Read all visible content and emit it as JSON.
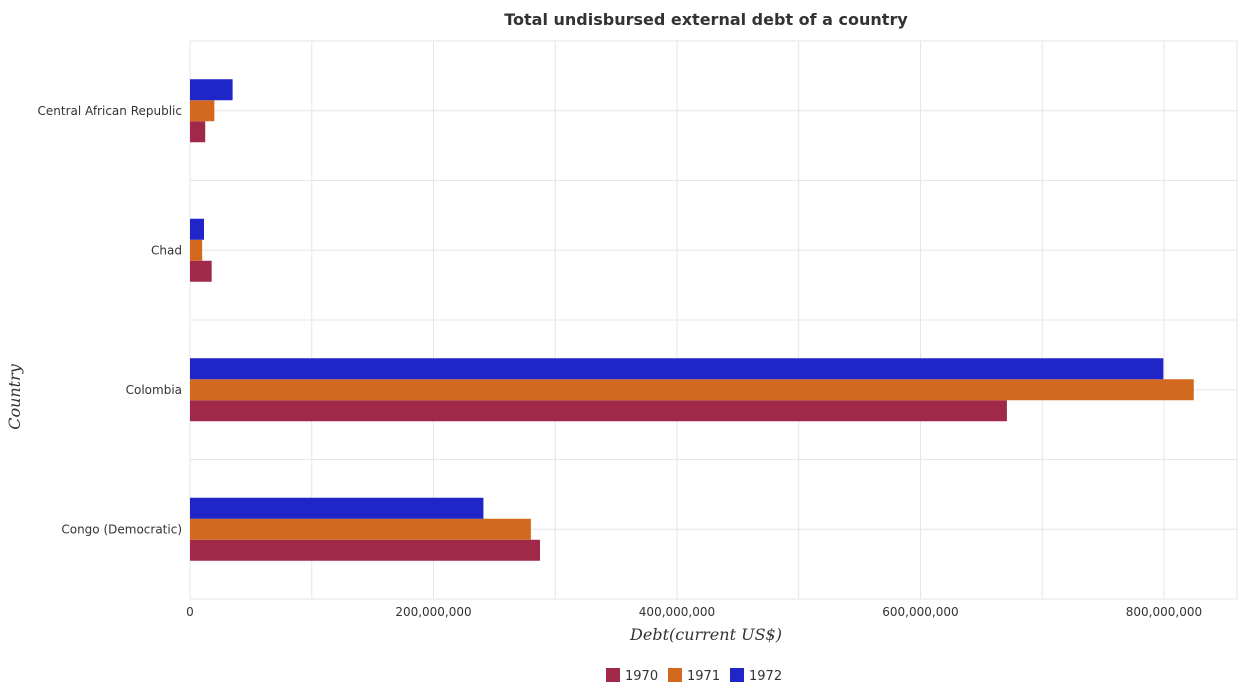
{
  "chart_data": {
    "type": "bar",
    "orientation": "horizontal",
    "title": "Total undisbursed external debt of a country",
    "xlabel": "Debt(current US$)",
    "ylabel": "Country",
    "categories": [
      "Central African Republic",
      "Chad",
      "Colombia",
      "Congo (Democratic)"
    ],
    "series": [
      {
        "name": "1970",
        "color": "#a0294a",
        "values": [
          12500000,
          17800000,
          671000000,
          287500000
        ]
      },
      {
        "name": "1971",
        "color": "#d2691e",
        "values": [
          20000000,
          10000000,
          824500000,
          280000000
        ]
      },
      {
        "name": "1972",
        "color": "#1f25c7",
        "values": [
          35000000,
          11500000,
          799500000,
          241000000
        ]
      }
    ],
    "xlim": [
      0,
      860000000
    ],
    "xticks": [
      0,
      200000000,
      400000000,
      600000000,
      800000000
    ],
    "xtick_labels": [
      "0",
      "200,000,000",
      "400,000,000",
      "600,000,000",
      "800,000,000"
    ],
    "legend_position": "bottom-center",
    "grid": true
  }
}
